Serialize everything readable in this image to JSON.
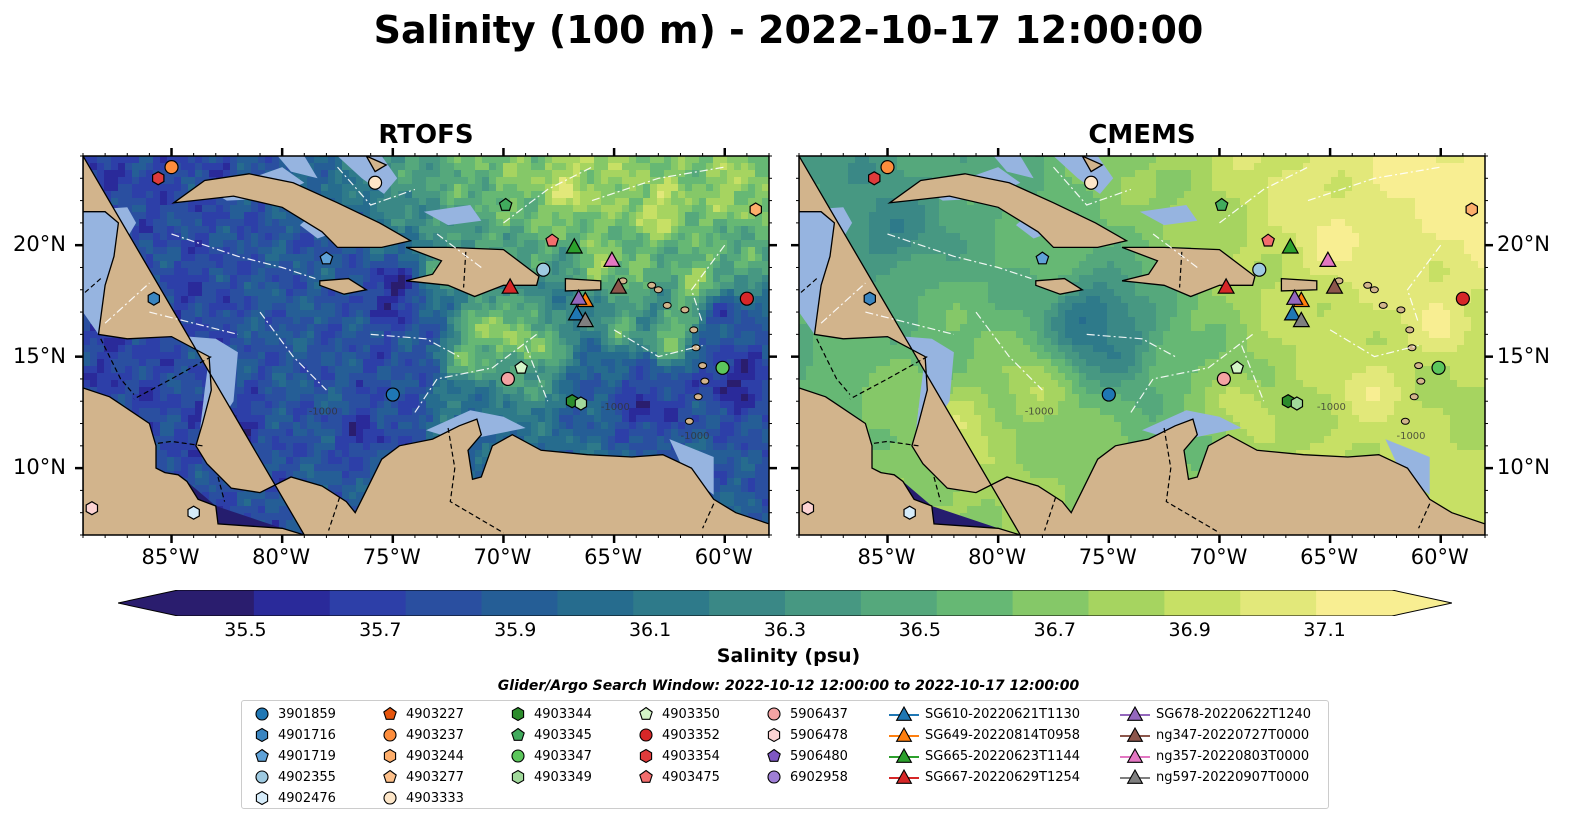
{
  "title": "Salinity (100 m) - 2022-10-17 12:00:00",
  "panels": [
    {
      "title": "RTOFS",
      "style": "eddy"
    },
    {
      "title": "CMEMS",
      "style": "smooth"
    }
  ],
  "map": {
    "extent": {
      "lon": [
        -89,
        -58
      ],
      "lat": [
        7,
        24
      ]
    },
    "lon_ticks": [
      -85,
      -80,
      -75,
      -70,
      -65,
      -60
    ],
    "lon_tick_labels": [
      "85°W",
      "80°W",
      "75°W",
      "70°W",
      "65°W",
      "60°W"
    ],
    "lat_ticks": [
      10,
      15,
      20
    ],
    "lat_tick_labels": [
      "10°N",
      "15°N",
      "20°N"
    ],
    "land_color": "#d2b48c",
    "shelf_color": "#96b4e0",
    "deep_color": "#251d6e",
    "contour_label": "-1000"
  },
  "colorbar": {
    "label": "Salinity (psu)",
    "min": 35.4,
    "max": 37.2,
    "tick_values": [
      35.5,
      35.7,
      35.9,
      36.1,
      36.3,
      36.5,
      36.7,
      36.9,
      37.1
    ],
    "tick_labels": [
      "35.5",
      "35.7",
      "35.9",
      "36.1",
      "36.3",
      "36.5",
      "36.7",
      "36.9",
      "37.1"
    ],
    "colormap": "haline",
    "colors": [
      "#2a1d6e",
      "#2a2a9a",
      "#2d3fa8",
      "#2a4fa0",
      "#255e96",
      "#266c8e",
      "#2e7a8a",
      "#3a8886",
      "#479882",
      "#55a87c",
      "#66b874",
      "#85c868",
      "#a6d460",
      "#c7e065",
      "#e2e87a",
      "#f8ee92"
    ],
    "extend": "both"
  },
  "search_window": "Glider/Argo Search Window: 2022-10-12 12:00:00 to 2022-10-17 12:00:00",
  "legend": {
    "columns": [
      [
        {
          "label": "3901859",
          "marker": "circle",
          "color": "#1f77b4"
        },
        {
          "label": "4901716",
          "marker": "hexagon",
          "color": "#3a85c0"
        },
        {
          "label": "4901719",
          "marker": "pentagon",
          "color": "#5fa2d8"
        },
        {
          "label": "4902355",
          "marker": "circle",
          "color": "#9ecae1"
        },
        {
          "label": "4902476",
          "marker": "hexagon",
          "color": "#d6ecfa"
        }
      ],
      [
        {
          "label": "4903227",
          "marker": "pentagon",
          "color": "#e6550d"
        },
        {
          "label": "4903237",
          "marker": "circle",
          "color": "#fd8d3c"
        },
        {
          "label": "4903244",
          "marker": "hexagon",
          "color": "#fdae6b"
        },
        {
          "label": "4903277",
          "marker": "pentagon",
          "color": "#fdc08a"
        },
        {
          "label": "4903333",
          "marker": "circle",
          "color": "#fde6c8"
        }
      ],
      [
        {
          "label": "4903344",
          "marker": "hexagon",
          "color": "#2c8c2c"
        },
        {
          "label": "4903345",
          "marker": "pentagon",
          "color": "#41ab5d"
        },
        {
          "label": "4903347",
          "marker": "circle",
          "color": "#5cc65c"
        },
        {
          "label": "4903349",
          "marker": "hexagon",
          "color": "#a1d99b"
        }
      ],
      [
        {
          "label": "4903350",
          "marker": "pentagon",
          "color": "#d4f5c8"
        },
        {
          "label": "4903352",
          "marker": "circle",
          "color": "#d62728"
        },
        {
          "label": "4903354",
          "marker": "hexagon",
          "color": "#de3b3b"
        },
        {
          "label": "4903475",
          "marker": "pentagon",
          "color": "#f26d6d"
        }
      ],
      [
        {
          "label": "5906437",
          "marker": "circle",
          "color": "#f4a3a3"
        },
        {
          "label": "5906478",
          "marker": "hexagon",
          "color": "#fcd3d3"
        },
        {
          "label": "5906480",
          "marker": "pentagon",
          "color": "#7e57c2"
        },
        {
          "label": "6902958",
          "marker": "circle",
          "color": "#9f7fd6"
        }
      ],
      [
        {
          "label": "SG610-20220621T1130",
          "marker": "triangle",
          "color": "#1f77b4"
        },
        {
          "label": "SG649-20220814T0958",
          "marker": "triangle",
          "color": "#ff7f0e"
        },
        {
          "label": "SG665-20220623T1144",
          "marker": "triangle",
          "color": "#2ca02c"
        },
        {
          "label": "SG667-20220629T1254",
          "marker": "triangle",
          "color": "#d62728"
        }
      ],
      [
        {
          "label": "SG678-20220622T1240",
          "marker": "triangle",
          "color": "#9467bd"
        },
        {
          "label": "ng347-20220727T0000",
          "marker": "triangle",
          "color": "#8c564b"
        },
        {
          "label": "ng357-20220803T0000",
          "marker": "triangle",
          "color": "#e377c2"
        },
        {
          "label": "ng597-20220907T0000",
          "marker": "triangle",
          "color": "#7f7f7f"
        }
      ]
    ]
  },
  "points": [
    {
      "id": "4903237",
      "lon": -85.0,
      "lat": 23.5,
      "marker": "circle",
      "color": "#fd8d3c"
    },
    {
      "id": "4903354",
      "lon": -85.6,
      "lat": 23.0,
      "marker": "hexagon",
      "color": "#de3b3b"
    },
    {
      "id": "4903333",
      "lon": -75.8,
      "lat": 22.8,
      "marker": "circle",
      "color": "#fde6c8"
    },
    {
      "id": "4903345",
      "lon": -69.9,
      "lat": 21.8,
      "marker": "pentagon",
      "color": "#41ab5d"
    },
    {
      "id": "4903244",
      "lon": -58.6,
      "lat": 21.6,
      "marker": "hexagon",
      "color": "#fdae6b"
    },
    {
      "id": "4903475",
      "lon": -67.8,
      "lat": 20.2,
      "marker": "pentagon",
      "color": "#f26d6d"
    },
    {
      "id": "SG665-20220623T1144",
      "lon": -66.8,
      "lat": 19.9,
      "marker": "triangle",
      "color": "#2ca02c"
    },
    {
      "id": "4901719",
      "lon": -78.0,
      "lat": 19.4,
      "marker": "pentagon",
      "color": "#5fa2d8"
    },
    {
      "id": "ng357-20220803T0000",
      "lon": -65.1,
      "lat": 19.3,
      "marker": "triangle",
      "color": "#e377c2"
    },
    {
      "id": "4902355",
      "lon": -68.2,
      "lat": 18.9,
      "marker": "circle",
      "color": "#9ecae1"
    },
    {
      "id": "SG667-20220629T1254",
      "lon": -69.7,
      "lat": 18.1,
      "marker": "triangle",
      "color": "#d62728"
    },
    {
      "id": "ng347-20220727T0000",
      "lon": -64.8,
      "lat": 18.1,
      "marker": "triangle",
      "color": "#8c564b"
    },
    {
      "id": "4903352",
      "lon": -59.0,
      "lat": 17.6,
      "marker": "circle",
      "color": "#d62728"
    },
    {
      "id": "4901716",
      "lon": -85.8,
      "lat": 17.6,
      "marker": "hexagon",
      "color": "#3a85c0"
    },
    {
      "id": "SG649-20220814T0958",
      "lon": -66.3,
      "lat": 17.5,
      "marker": "triangle",
      "color": "#ff7f0e"
    },
    {
      "id": "SG678-20220622T1240",
      "lon": -66.6,
      "lat": 17.6,
      "marker": "triangle",
      "color": "#9467bd"
    },
    {
      "id": "SG610-20220621T1130",
      "lon": -66.7,
      "lat": 16.9,
      "marker": "triangle",
      "color": "#1f77b4"
    },
    {
      "id": "ng597-20220907T0000",
      "lon": -66.3,
      "lat": 16.6,
      "marker": "triangle",
      "color": "#7f7f7f"
    },
    {
      "id": "4903350",
      "lon": -69.2,
      "lat": 14.5,
      "marker": "pentagon",
      "color": "#d4f5c8"
    },
    {
      "id": "4903347",
      "lon": -60.1,
      "lat": 14.5,
      "marker": "circle",
      "color": "#5cc65c"
    },
    {
      "id": "5906437",
      "lon": -69.8,
      "lat": 14.0,
      "marker": "circle",
      "color": "#f4a3a3"
    },
    {
      "id": "3901859",
      "lon": -75.0,
      "lat": 13.3,
      "marker": "circle",
      "color": "#1f77b4"
    },
    {
      "id": "4903344",
      "lon": -66.9,
      "lat": 13.0,
      "marker": "hexagon",
      "color": "#2c8c2c"
    },
    {
      "id": "4903349",
      "lon": -66.5,
      "lat": 12.9,
      "marker": "hexagon",
      "color": "#a1d99b"
    },
    {
      "id": "5906478",
      "lon": -88.6,
      "lat": 8.2,
      "marker": "hexagon",
      "color": "#fcd3d3"
    },
    {
      "id": "4902476",
      "lon": -84.0,
      "lat": 8.0,
      "marker": "hexagon",
      "color": "#d6ecfa"
    }
  ]
}
